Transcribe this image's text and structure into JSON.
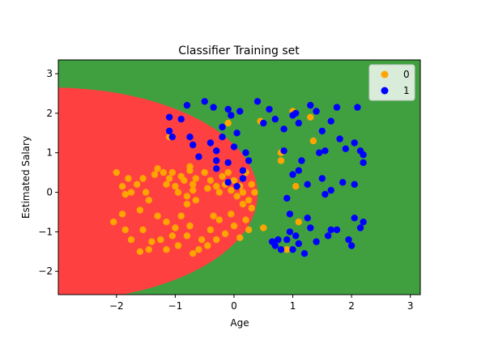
{
  "chart_data": {
    "type": "scatter",
    "title": "Classifier Training set",
    "xlabel": "Age",
    "ylabel": "Estimated Salary",
    "xlim": [
      -2.99,
      3.17
    ],
    "ylim": [
      -2.59,
      3.35
    ],
    "x_ticks": [
      -2,
      -1,
      0,
      1,
      2,
      3
    ],
    "y_ticks": [
      -2,
      -1,
      0,
      1,
      2,
      3
    ],
    "grid": false,
    "legend_position": "top-right",
    "background_regions": [
      {
        "class": "0",
        "color": "#ff4040"
      },
      {
        "class": "1",
        "color": "#40a040"
      }
    ],
    "series": [
      {
        "name": "0",
        "color": "#ffa500",
        "points": [
          [
            -2.0,
            0.5
          ],
          [
            -1.9,
            0.15
          ],
          [
            -1.85,
            -0.05
          ],
          [
            -1.8,
            0.35
          ],
          [
            -1.75,
            0.0
          ],
          [
            -1.65,
            0.2
          ],
          [
            -1.55,
            0.35
          ],
          [
            -1.5,
            0.0
          ],
          [
            -1.45,
            -0.2
          ],
          [
            -1.35,
            0.45
          ],
          [
            -1.3,
            0.6
          ],
          [
            -1.2,
            0.5
          ],
          [
            -1.15,
            0.2
          ],
          [
            -1.1,
            0.35
          ],
          [
            -1.05,
            0.5
          ],
          [
            -1.0,
            0.15
          ],
          [
            -0.95,
            0.0
          ],
          [
            -0.9,
            0.4
          ],
          [
            -0.85,
            0.3
          ],
          [
            -0.8,
            -0.1
          ],
          [
            -0.75,
            0.55
          ],
          [
            -0.7,
            0.2
          ],
          [
            -0.7,
            0.05
          ],
          [
            -0.65,
            0.35
          ],
          [
            -0.65,
            -0.2
          ],
          [
            -0.5,
            0.5
          ],
          [
            -0.45,
            0.1
          ],
          [
            -0.4,
            0.3
          ],
          [
            -0.3,
            0.6
          ],
          [
            -0.3,
            0.15
          ],
          [
            -0.25,
            0.0
          ],
          [
            -0.2,
            0.4
          ],
          [
            -0.15,
            0.2
          ],
          [
            -0.1,
            0.5
          ],
          [
            -0.05,
            0.05
          ],
          [
            0.0,
            0.3
          ],
          [
            0.05,
            -0.1
          ],
          [
            0.1,
            0.15
          ],
          [
            0.15,
            0.0
          ],
          [
            0.2,
            0.5
          ],
          [
            0.25,
            -0.2
          ],
          [
            0.3,
            0.2
          ],
          [
            0.35,
            0.0
          ],
          [
            -0.8,
            -0.3
          ],
          [
            -0.75,
            0.65
          ],
          [
            -2.05,
            -0.75
          ],
          [
            -1.9,
            -0.55
          ],
          [
            -1.85,
            -0.95
          ],
          [
            -1.75,
            -1.2
          ],
          [
            -1.6,
            -0.45
          ],
          [
            -1.55,
            -0.95
          ],
          [
            -1.45,
            -1.45
          ],
          [
            -1.4,
            -1.25
          ],
          [
            -1.3,
            -0.6
          ],
          [
            -1.25,
            -1.2
          ],
          [
            -1.15,
            -1.45
          ],
          [
            -1.15,
            -0.75
          ],
          [
            -1.05,
            -1.1
          ],
          [
            -1.0,
            -0.9
          ],
          [
            -0.95,
            -1.35
          ],
          [
            -0.9,
            -0.6
          ],
          [
            -0.8,
            -1.1
          ],
          [
            -0.75,
            -0.85
          ],
          [
            -0.7,
            -1.55
          ],
          [
            -0.6,
            -1.45
          ],
          [
            -0.55,
            -1.2
          ],
          [
            -0.45,
            -1.35
          ],
          [
            -0.4,
            -0.95
          ],
          [
            -0.3,
            -1.2
          ],
          [
            -0.25,
            -0.7
          ],
          [
            -0.15,
            -1.05
          ],
          [
            -0.05,
            -0.55
          ],
          [
            0.0,
            -0.85
          ],
          [
            0.1,
            -1.15
          ],
          [
            0.2,
            -0.7
          ],
          [
            0.25,
            -0.95
          ],
          [
            0.3,
            -0.4
          ],
          [
            0.15,
            -0.3
          ],
          [
            -0.35,
            -0.6
          ],
          [
            -1.6,
            -1.5
          ],
          [
            0.8,
            0.8
          ],
          [
            1.05,
            0.15
          ],
          [
            1.35,
            1.3
          ],
          [
            0.5,
            -0.9
          ],
          [
            -0.1,
            1.75
          ],
          [
            1.1,
            -0.75
          ],
          [
            0.9,
            -1.45
          ],
          [
            1.0,
            2.05
          ],
          [
            -1.1,
            1.4
          ],
          [
            0.45,
            1.8
          ],
          [
            0.8,
            1.0
          ],
          [
            1.3,
            1.9
          ]
        ]
      },
      {
        "name": "1",
        "color": "#0000ff",
        "points": [
          [
            -1.1,
            1.55
          ],
          [
            -1.1,
            1.9
          ],
          [
            -0.9,
            1.85
          ],
          [
            -0.8,
            2.2
          ],
          [
            -0.75,
            1.4
          ],
          [
            -0.7,
            1.2
          ],
          [
            -0.5,
            2.3
          ],
          [
            -0.35,
            2.15
          ],
          [
            -0.4,
            1.25
          ],
          [
            -0.3,
            1.05
          ],
          [
            -0.2,
            1.65
          ],
          [
            -0.2,
            1.4
          ],
          [
            -0.1,
            2.1
          ],
          [
            -0.05,
            1.95
          ],
          [
            0.05,
            1.5
          ],
          [
            0.1,
            2.05
          ],
          [
            0.2,
            1.0
          ],
          [
            0.4,
            2.3
          ],
          [
            0.5,
            1.75
          ],
          [
            0.6,
            2.1
          ],
          [
            0.7,
            1.85
          ],
          [
            0.85,
            1.6
          ],
          [
            1.0,
            1.95
          ],
          [
            1.1,
            1.75
          ],
          [
            1.3,
            2.2
          ],
          [
            1.4,
            2.05
          ],
          [
            1.5,
            1.55
          ],
          [
            1.65,
            1.8
          ],
          [
            1.75,
            2.15
          ],
          [
            1.8,
            1.35
          ],
          [
            1.9,
            1.1
          ],
          [
            2.05,
            1.25
          ],
          [
            2.1,
            2.15
          ],
          [
            2.2,
            0.95
          ],
          [
            1.55,
            1.05
          ],
          [
            1.45,
            1.0
          ],
          [
            0.25,
            0.8
          ],
          [
            0.85,
            1.05
          ],
          [
            1.0,
            0.45
          ],
          [
            1.1,
            0.55
          ],
          [
            1.25,
            0.2
          ],
          [
            1.5,
            0.35
          ],
          [
            1.55,
            -0.05
          ],
          [
            1.65,
            0.05
          ],
          [
            1.85,
            0.25
          ],
          [
            2.05,
            0.2
          ],
          [
            2.2,
            0.75
          ],
          [
            -1.05,
            1.4
          ],
          [
            -0.3,
            0.6
          ],
          [
            -0.3,
            0.8
          ],
          [
            -0.1,
            0.25
          ],
          [
            0.05,
            0.15
          ],
          [
            0.15,
            0.35
          ],
          [
            0.9,
            -0.15
          ],
          [
            0.9,
            -1.2
          ],
          [
            0.95,
            -1.0
          ],
          [
            1.0,
            -1.45
          ],
          [
            1.05,
            -1.1
          ],
          [
            1.1,
            -1.3
          ],
          [
            1.2,
            -1.55
          ],
          [
            1.3,
            -0.9
          ],
          [
            1.4,
            -1.25
          ],
          [
            1.6,
            -1.1
          ],
          [
            1.75,
            -0.95
          ],
          [
            1.95,
            -1.2
          ],
          [
            2.0,
            -1.35
          ],
          [
            2.05,
            -0.65
          ],
          [
            2.15,
            -0.9
          ],
          [
            2.2,
            -0.75
          ],
          [
            0.8,
            -1.45
          ],
          [
            0.7,
            -1.35
          ],
          [
            0.65,
            -1.25
          ],
          [
            0.75,
            -1.2
          ],
          [
            0.95,
            -0.55
          ],
          [
            1.25,
            -0.65
          ],
          [
            -0.1,
            0.75
          ],
          [
            0.0,
            1.15
          ],
          [
            0.15,
            0.55
          ],
          [
            1.05,
            2.0
          ],
          [
            -0.6,
            0.9
          ],
          [
            1.15,
            0.8
          ],
          [
            1.65,
            -0.95
          ],
          [
            2.15,
            1.05
          ]
        ]
      }
    ]
  }
}
